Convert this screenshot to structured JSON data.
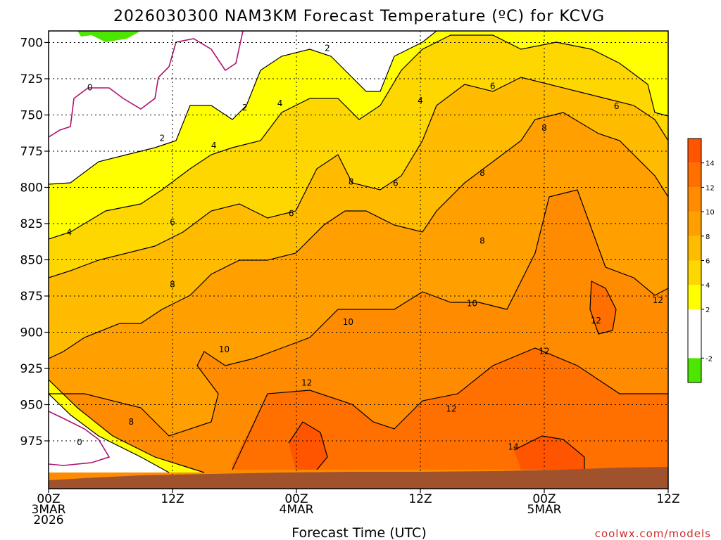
{
  "chart_data": {
    "type": "heatmap",
    "title": "2026030300 NAM3KM Forecast Temperature (ºC) for KCVG",
    "xlabel": "Forecast Time (UTC)",
    "ylabel": "",
    "credit": "coolwx.com/models",
    "x_ticks": [
      {
        "hours": 0,
        "line1": "00Z",
        "line2": "3MAR",
        "line3": "2026"
      },
      {
        "hours": 12,
        "line1": "12Z",
        "line2": "",
        "line3": ""
      },
      {
        "hours": 24,
        "line1": "00Z",
        "line2": "4MAR",
        "line3": ""
      },
      {
        "hours": 36,
        "line1": "12Z",
        "line2": "",
        "line3": ""
      },
      {
        "hours": 48,
        "line1": "00Z",
        "line2": "5MAR",
        "line3": ""
      },
      {
        "hours": 60,
        "line1": "12Z",
        "line2": "",
        "line3": ""
      }
    ],
    "xlim": [
      0,
      60
    ],
    "y_ticks": [
      700,
      725,
      750,
      775,
      800,
      825,
      850,
      875,
      900,
      925,
      950,
      975
    ],
    "ylim": [
      692,
      1008
    ],
    "ground_level_hPa": 988,
    "colorbar": {
      "ticks": [
        "-2",
        "2",
        "4",
        "6",
        "8",
        "10",
        "12",
        "14"
      ],
      "bins": [
        {
          "color": "#4ce600",
          "from": -4,
          "to": -2
        },
        {
          "color": "#ffffff",
          "from": -2,
          "to": 2
        },
        {
          "color": "#ffff00",
          "from": 2,
          "to": 4
        },
        {
          "color": "#ffd700",
          "from": 4,
          "to": 6
        },
        {
          "color": "#ffbb00",
          "from": 6,
          "to": 8
        },
        {
          "color": "#ffa000",
          "from": 8,
          "to": 10
        },
        {
          "color": "#ff8c00",
          "from": 10,
          "to": 12
        },
        {
          "color": "#ff7000",
          "from": 12,
          "to": 14
        },
        {
          "color": "#ff5500",
          "from": 14,
          "to": 16
        }
      ]
    },
    "contour_labels": [
      {
        "text": "0",
        "hours": 4.0,
        "p": 731
      },
      {
        "text": "0",
        "hours": 3.0,
        "p": 976
      },
      {
        "text": "2",
        "hours": 27.0,
        "p": 704
      },
      {
        "text": "2",
        "hours": 19.0,
        "p": 745
      },
      {
        "text": "2",
        "hours": 11.0,
        "p": 766
      },
      {
        "text": "4",
        "hours": 22.4,
        "p": 742
      },
      {
        "text": "4",
        "hours": 36.0,
        "p": 740
      },
      {
        "text": "4",
        "hours": 16.0,
        "p": 771
      },
      {
        "text": "4",
        "hours": 2.0,
        "p": 831
      },
      {
        "text": "6",
        "hours": 43.0,
        "p": 730
      },
      {
        "text": "6",
        "hours": 55.0,
        "p": 744
      },
      {
        "text": "6",
        "hours": 33.6,
        "p": 797
      },
      {
        "text": "6",
        "hours": 23.5,
        "p": 818
      },
      {
        "text": "6",
        "hours": 12.0,
        "p": 824
      },
      {
        "text": "8",
        "hours": 48.0,
        "p": 759
      },
      {
        "text": "8",
        "hours": 42.0,
        "p": 790
      },
      {
        "text": "8",
        "hours": 29.3,
        "p": 796
      },
      {
        "text": "8",
        "hours": 42.0,
        "p": 837
      },
      {
        "text": "8",
        "hours": 12.0,
        "p": 867
      },
      {
        "text": "8",
        "hours": 8.0,
        "p": 962
      },
      {
        "text": "10",
        "hours": 41.0,
        "p": 880
      },
      {
        "text": "10",
        "hours": 29.0,
        "p": 893
      },
      {
        "text": "10",
        "hours": 17.0,
        "p": 912
      },
      {
        "text": "12",
        "hours": 59.0,
        "p": 878
      },
      {
        "text": "12",
        "hours": 53.0,
        "p": 892
      },
      {
        "text": "12",
        "hours": 48.0,
        "p": 913
      },
      {
        "text": "12",
        "hours": 25.0,
        "p": 935
      },
      {
        "text": "12",
        "hours": 39.0,
        "p": 953
      },
      {
        "text": "14",
        "hours": 45.0,
        "p": 979
      }
    ]
  }
}
